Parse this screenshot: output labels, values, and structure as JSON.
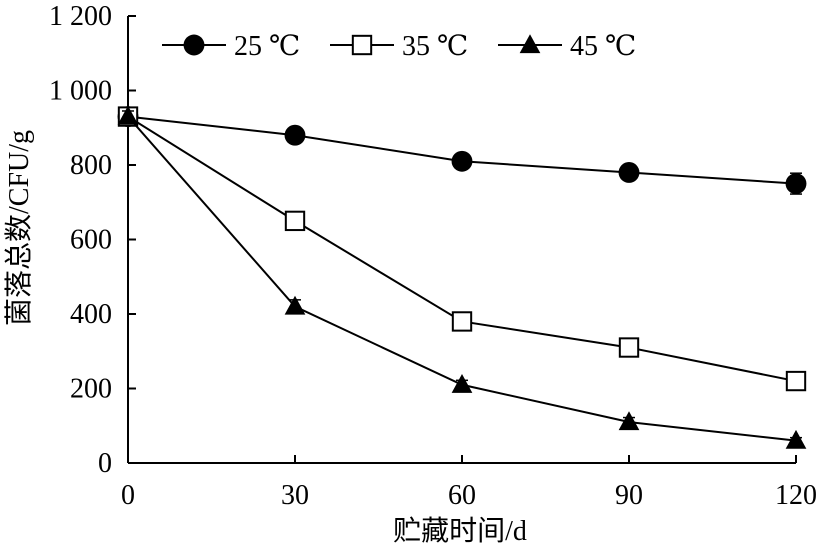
{
  "chart_data": {
    "type": "line",
    "xlabel": "贮藏时间/d",
    "ylabel": "菌落总数/CFU/g",
    "x": [
      0,
      30,
      60,
      90,
      120
    ],
    "x_ticks": [
      "0",
      "30",
      "60",
      "90",
      "120"
    ],
    "y_ticks": [
      {
        "value": 0,
        "label": "0"
      },
      {
        "value": 200,
        "label": "200"
      },
      {
        "value": 400,
        "label": "400"
      },
      {
        "value": 600,
        "label": "600"
      },
      {
        "value": 800,
        "label": "800"
      },
      {
        "value": 1000,
        "label": "1 000"
      },
      {
        "value": 1200,
        "label": "1 200"
      }
    ],
    "xlim": [
      0,
      120
    ],
    "ylim": [
      0,
      1200
    ],
    "grid": false,
    "legend_position": "top",
    "series": [
      {
        "name": "25 ℃",
        "marker": "circle-filled",
        "values": [
          930,
          880,
          810,
          780,
          750
        ],
        "errors": [
          15,
          15,
          20,
          20,
          28
        ]
      },
      {
        "name": "35 ℃",
        "marker": "square-open",
        "values": [
          930,
          650,
          380,
          310,
          220
        ],
        "errors": [
          15,
          15,
          12,
          12,
          12
        ]
      },
      {
        "name": "45 ℃",
        "marker": "triangle-filled",
        "values": [
          930,
          420,
          210,
          110,
          60
        ],
        "errors": [
          15,
          18,
          12,
          12,
          8
        ]
      }
    ]
  }
}
